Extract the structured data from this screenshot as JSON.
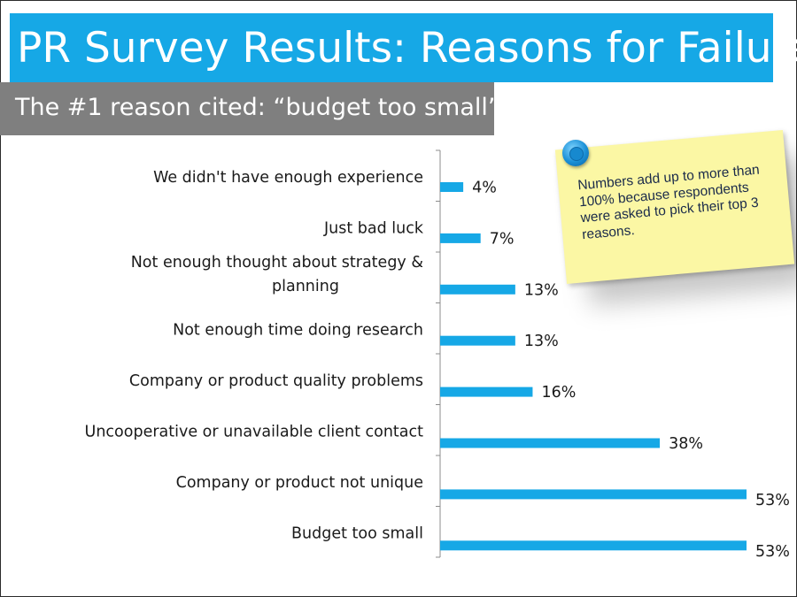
{
  "slide": {
    "title": "PR Survey Results: Reasons for Failure",
    "subtitle": "The #1 reason cited: “budget too small”"
  },
  "note": {
    "text": "Numbers add up to more than 100% because respondents were asked to pick their top 3 reasons."
  },
  "colors": {
    "accent": "#16a8e6",
    "subtitle_bg": "#7f7f7f",
    "bar": "#16a8e6",
    "note_bg": "#fbf7a4"
  },
  "chart_data": {
    "type": "bar",
    "orientation": "horizontal",
    "title": "",
    "xlabel": "",
    "ylabel": "",
    "xlim": [
      0,
      55
    ],
    "grid": false,
    "categories": [
      [
        "We didn't have enough experience"
      ],
      [
        "Just bad luck"
      ],
      [
        "Not enough thought about strategy &",
        "planning"
      ],
      [
        "Not enough time doing research"
      ],
      [
        "Company or product quality problems"
      ],
      [
        "Uncooperative or unavailable client contact"
      ],
      [
        "Company or product not unique"
      ],
      [
        "Budget too small"
      ]
    ],
    "values": [
      4,
      7,
      13,
      13,
      16,
      38,
      53,
      53
    ],
    "value_labels": [
      "4%",
      "7%",
      "13%",
      "13%",
      "16%",
      "38%",
      "53%",
      "53%"
    ]
  }
}
